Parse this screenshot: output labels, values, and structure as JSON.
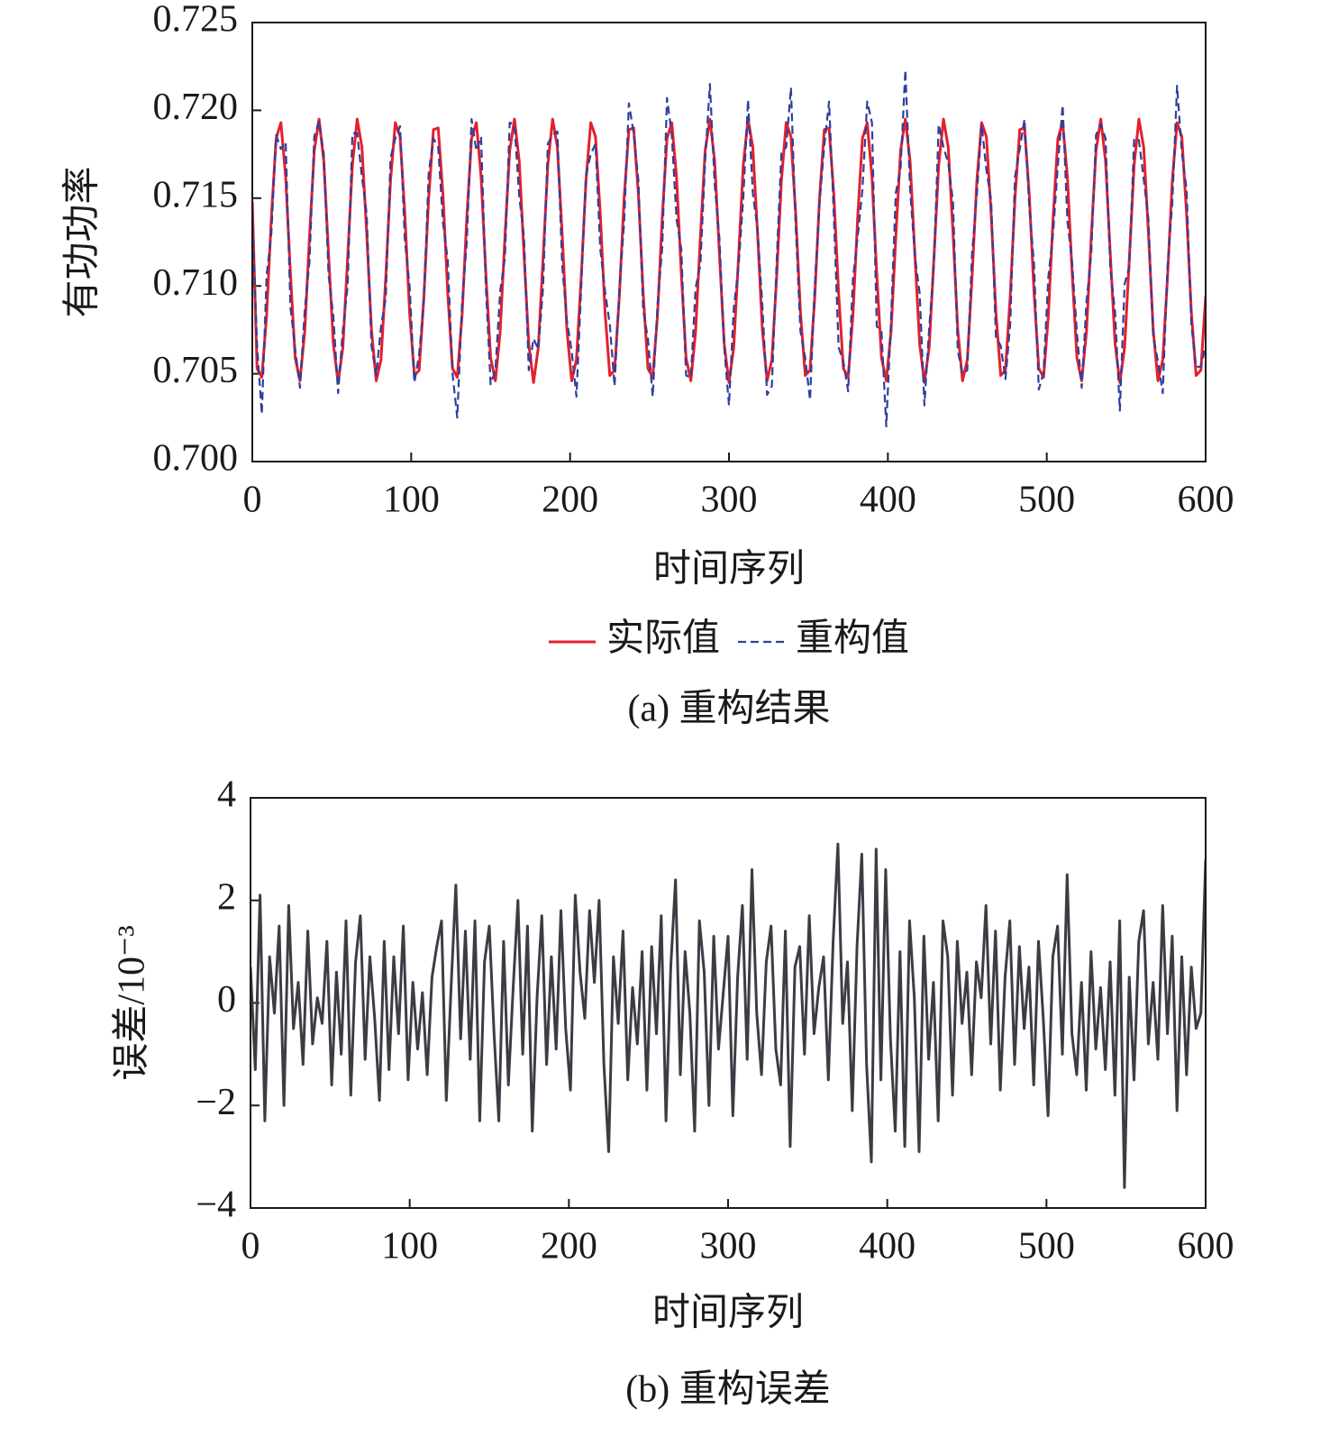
{
  "chart_data": [
    {
      "type": "line",
      "caption": "(a) 重构结果",
      "xlabel": "时间序列",
      "ylabel": "有功功率",
      "legend": "below",
      "xlim": [
        0,
        600
      ],
      "xticks": [
        0,
        100,
        200,
        300,
        400,
        500,
        600
      ],
      "ylim": [
        0.7,
        0.725
      ],
      "yticks": [
        {
          "value": 0.7,
          "label": "0.700"
        },
        0.705,
        {
          "value": 0.71,
          "label": "0.710"
        },
        0.715,
        {
          "value": 0.72,
          "label": "0.720"
        },
        0.725
      ],
      "x": [
        0,
        3,
        6,
        9,
        12,
        15,
        18,
        21,
        24,
        27,
        30,
        33,
        36,
        39,
        42,
        45,
        48,
        51,
        54,
        57,
        60,
        63,
        66,
        69,
        72,
        75,
        78,
        81,
        84,
        87,
        90,
        93,
        96,
        99,
        102,
        105,
        108,
        111,
        114,
        117,
        120,
        123,
        126,
        129,
        132,
        135,
        138,
        141,
        144,
        147,
        150,
        153,
        156,
        159,
        162,
        165,
        168,
        171,
        174,
        177,
        180,
        183,
        186,
        189,
        192,
        195,
        198,
        201,
        204,
        207,
        210,
        213,
        216,
        219,
        222,
        225,
        228,
        231,
        234,
        237,
        240,
        243,
        246,
        249,
        252,
        255,
        258,
        261,
        264,
        267,
        270,
        273,
        276,
        279,
        282,
        285,
        288,
        291,
        294,
        297,
        300,
        303,
        306,
        309,
        312,
        315,
        318,
        321,
        324,
        327,
        330,
        333,
        336,
        339,
        342,
        345,
        348,
        351,
        354,
        357,
        360,
        363,
        366,
        369,
        372,
        375,
        378,
        381,
        384,
        387,
        390,
        393,
        396,
        399,
        402,
        405,
        408,
        411,
        414,
        417,
        420,
        423,
        426,
        429,
        432,
        435,
        438,
        441,
        444,
        447,
        450,
        453,
        456,
        459,
        462,
        465,
        468,
        471,
        474,
        477,
        480,
        483,
        486,
        489,
        492,
        495,
        498,
        501,
        504,
        507,
        510,
        513,
        516,
        519,
        522,
        525,
        528,
        531,
        534,
        537,
        540,
        543,
        546,
        549,
        552,
        555,
        558,
        561,
        564,
        567,
        570,
        573,
        576,
        579,
        582,
        585,
        588,
        591,
        594,
        597,
        600
      ],
      "series": [
        {
          "name": "实际值",
          "color": "#e3202c",
          "dashed": false,
          "values": [
            0.7148,
            0.7053,
            0.7048,
            0.7083,
            0.7139,
            0.7184,
            0.7193,
            0.7162,
            0.7107,
            0.7059,
            0.7046,
            0.7074,
            0.7128,
            0.7177,
            0.7195,
            0.7171,
            0.7118,
            0.7067,
            0.7045,
            0.7065,
            0.7116,
            0.7169,
            0.7195,
            0.7179,
            0.713,
            0.7075,
            0.7046,
            0.7058,
            0.7105,
            0.716,
            0.7193,
            0.7185,
            0.7141,
            0.7085,
            0.7049,
            0.7052,
            0.7094,
            0.715,
            0.7189,
            0.719,
            0.7152,
            0.7096,
            0.7053,
            0.7048,
            0.7083,
            0.7139,
            0.7184,
            0.7193,
            0.7162,
            0.7107,
            0.7059,
            0.7046,
            0.7074,
            0.7128,
            0.7177,
            0.7195,
            0.7171,
            0.7118,
            0.7067,
            0.7045,
            0.7065,
            0.7116,
            0.7169,
            0.7195,
            0.7179,
            0.713,
            0.7075,
            0.7046,
            0.7058,
            0.7105,
            0.716,
            0.7193,
            0.7185,
            0.7141,
            0.7085,
            0.7049,
            0.7052,
            0.7094,
            0.715,
            0.7189,
            0.719,
            0.7152,
            0.7096,
            0.7053,
            0.7048,
            0.7083,
            0.7139,
            0.7184,
            0.7193,
            0.7162,
            0.7107,
            0.7059,
            0.7046,
            0.7074,
            0.7128,
            0.7177,
            0.7195,
            0.7171,
            0.7118,
            0.7067,
            0.7045,
            0.7065,
            0.7116,
            0.7169,
            0.7195,
            0.7179,
            0.713,
            0.7075,
            0.7046,
            0.7058,
            0.7105,
            0.716,
            0.7193,
            0.7185,
            0.7141,
            0.7085,
            0.7049,
            0.7052,
            0.7094,
            0.715,
            0.7189,
            0.719,
            0.7152,
            0.7096,
            0.7053,
            0.7048,
            0.7083,
            0.7139,
            0.7184,
            0.7193,
            0.7162,
            0.7107,
            0.7059,
            0.7046,
            0.7074,
            0.7128,
            0.7177,
            0.7195,
            0.7171,
            0.7118,
            0.7067,
            0.7045,
            0.7065,
            0.7116,
            0.7169,
            0.7195,
            0.7179,
            0.713,
            0.7075,
            0.7046,
            0.7058,
            0.7105,
            0.716,
            0.7193,
            0.7185,
            0.7141,
            0.7085,
            0.7049,
            0.7052,
            0.7094,
            0.715,
            0.7189,
            0.719,
            0.7152,
            0.7096,
            0.7053,
            0.7048,
            0.7083,
            0.7139,
            0.7184,
            0.7193,
            0.7162,
            0.7107,
            0.7059,
            0.7046,
            0.7074,
            0.7128,
            0.7177,
            0.7195,
            0.7171,
            0.7118,
            0.7067,
            0.7045,
            0.7065,
            0.7116,
            0.7169,
            0.7195,
            0.7179,
            0.713,
            0.7075,
            0.7046,
            0.7058,
            0.7105,
            0.716,
            0.7193,
            0.7185,
            0.7141,
            0.7085,
            0.7049,
            0.7052,
            0.7094
          ]
        },
        {
          "name": "重构值",
          "color": "#2e3f9e",
          "dashed": true,
          "values": [
            0.7141,
            0.7066,
            0.7027,
            0.7106,
            0.713,
            0.7186,
            0.7178,
            0.7182,
            0.7088,
            0.7064,
            0.7042,
            0.7086,
            0.7114,
            0.7185,
            0.7194,
            0.7175,
            0.7106,
            0.7083,
            0.7039,
            0.7075,
            0.71,
            0.7187,
            0.7187,
            0.7162,
            0.7141,
            0.7066,
            0.7049,
            0.7077,
            0.7093,
            0.7173,
            0.7184,
            0.7191,
            0.7126,
            0.71,
            0.7045,
            0.7061,
            0.7092,
            0.7164,
            0.7184,
            0.7179,
            0.7136,
            0.7115,
            0.705,
            0.7025,
            0.709,
            0.7125,
            0.7195,
            0.7177,
            0.7185,
            0.7099,
            0.7044,
            0.7052,
            0.7097,
            0.7116,
            0.7193,
            0.7192,
            0.7151,
            0.7128,
            0.7052,
            0.707,
            0.7064,
            0.7099,
            0.7181,
            0.7186,
            0.7188,
            0.7112,
            0.708,
            0.7063,
            0.7037,
            0.7099,
            0.7163,
            0.7175,
            0.7181,
            0.7121,
            0.7097,
            0.7078,
            0.7043,
            0.7098,
            0.7136,
            0.7204,
            0.7187,
            0.716,
            0.7086,
            0.707,
            0.7037,
            0.7089,
            0.7122,
            0.7207,
            0.7186,
            0.7138,
            0.7121,
            0.7049,
            0.7048,
            0.7099,
            0.7112,
            0.7171,
            0.7215,
            0.7158,
            0.7127,
            0.7065,
            0.7032,
            0.7087,
            0.7111,
            0.715,
            0.7206,
            0.7153,
            0.7132,
            0.7089,
            0.7038,
            0.7043,
            0.7114,
            0.7176,
            0.7179,
            0.7213,
            0.7134,
            0.7074,
            0.7059,
            0.7035,
            0.71,
            0.7147,
            0.718,
            0.7205,
            0.714,
            0.7065,
            0.7057,
            0.704,
            0.7104,
            0.7128,
            0.7155,
            0.7205,
            0.7193,
            0.7077,
            0.7074,
            0.702,
            0.7081,
            0.7153,
            0.7167,
            0.7223,
            0.7155,
            0.7117,
            0.7096,
            0.7032,
            0.7076,
            0.7112,
            0.7192,
            0.7179,
            0.717,
            0.7148,
            0.7063,
            0.705,
            0.7052,
            0.7119,
            0.7152,
            0.7192,
            0.7166,
            0.7149,
            0.7071,
            0.7066,
            0.7047,
            0.7078,
            0.7162,
            0.7178,
            0.7195,
            0.7145,
            0.7112,
            0.7041,
            0.7051,
            0.7105,
            0.713,
            0.7169,
            0.7203,
            0.7137,
            0.7113,
            0.7073,
            0.7042,
            0.7091,
            0.7118,
            0.7186,
            0.7192,
            0.7184,
            0.711,
            0.7085,
            0.7029,
            0.7101,
            0.7111,
            0.7184,
            0.7183,
            0.7161,
            0.7138,
            0.7071,
            0.7057,
            0.7039,
            0.7111,
            0.7147,
            0.7214,
            0.7176,
            0.7155,
            0.7078,
            0.7054,
            0.7054,
            0.7066
          ]
        }
      ]
    },
    {
      "type": "line",
      "caption": "(b) 重构误差",
      "xlabel": "时间序列",
      "ylabel": "误差/10⁻³",
      "xlim": [
        0,
        600
      ],
      "xticks": [
        0,
        100,
        200,
        300,
        400,
        500,
        600
      ],
      "ylim": [
        -4,
        4
      ],
      "yticks": [
        {
          "value": -4,
          "label": "−4"
        },
        {
          "value": -2,
          "label": "−2"
        },
        0,
        2,
        4
      ],
      "x": [
        0,
        3,
        6,
        9,
        12,
        15,
        18,
        21,
        24,
        27,
        30,
        33,
        36,
        39,
        42,
        45,
        48,
        51,
        54,
        57,
        60,
        63,
        66,
        69,
        72,
        75,
        78,
        81,
        84,
        87,
        90,
        93,
        96,
        99,
        102,
        105,
        108,
        111,
        114,
        117,
        120,
        123,
        126,
        129,
        132,
        135,
        138,
        141,
        144,
        147,
        150,
        153,
        156,
        159,
        162,
        165,
        168,
        171,
        174,
        177,
        180,
        183,
        186,
        189,
        192,
        195,
        198,
        201,
        204,
        207,
        210,
        213,
        216,
        219,
        222,
        225,
        228,
        231,
        234,
        237,
        240,
        243,
        246,
        249,
        252,
        255,
        258,
        261,
        264,
        267,
        270,
        273,
        276,
        279,
        282,
        285,
        288,
        291,
        294,
        297,
        300,
        303,
        306,
        309,
        312,
        315,
        318,
        321,
        324,
        327,
        330,
        333,
        336,
        339,
        342,
        345,
        348,
        351,
        354,
        357,
        360,
        363,
        366,
        369,
        372,
        375,
        378,
        381,
        384,
        387,
        390,
        393,
        396,
        399,
        402,
        405,
        408,
        411,
        414,
        417,
        420,
        423,
        426,
        429,
        432,
        435,
        438,
        441,
        444,
        447,
        450,
        453,
        456,
        459,
        462,
        465,
        468,
        471,
        474,
        477,
        480,
        483,
        486,
        489,
        492,
        495,
        498,
        501,
        504,
        507,
        510,
        513,
        516,
        519,
        522,
        525,
        528,
        531,
        534,
        537,
        540,
        543,
        546,
        549,
        552,
        555,
        558,
        561,
        564,
        567,
        570,
        573,
        576,
        579,
        582,
        585,
        588,
        591,
        594,
        597,
        600
      ],
      "series": [
        {
          "color": "#3c3d44",
          "dashed": false,
          "values": [
            0.7,
            -1.3,
            2.1,
            -2.3,
            0.9,
            -0.2,
            1.5,
            -2.0,
            1.9,
            -0.5,
            0.4,
            -1.2,
            1.4,
            -0.8,
            0.1,
            -0.4,
            1.2,
            -1.6,
            0.6,
            -1.0,
            1.6,
            -1.8,
            0.8,
            1.7,
            -1.1,
            0.9,
            -0.3,
            -1.9,
            1.2,
            -1.3,
            0.9,
            -0.6,
            1.5,
            -1.5,
            0.4,
            -0.9,
            0.2,
            -1.4,
            0.5,
            1.1,
            1.6,
            -1.9,
            0.3,
            2.3,
            -0.7,
            1.4,
            -1.1,
            1.6,
            -2.3,
            0.8,
            1.5,
            -0.6,
            -2.3,
            1.2,
            -1.6,
            0.3,
            2.0,
            -1.0,
            1.5,
            -2.5,
            0.1,
            1.7,
            -1.2,
            0.9,
            -0.9,
            1.8,
            -0.5,
            -1.7,
            2.1,
            0.6,
            -0.3,
            1.8,
            0.4,
            2.0,
            -1.2,
            -2.9,
            0.9,
            -0.4,
            1.4,
            -1.5,
            0.3,
            -0.8,
            1.0,
            -1.7,
            1.1,
            -0.6,
            1.7,
            -2.3,
            0.7,
            2.4,
            -1.4,
            1.0,
            -0.2,
            -2.5,
            1.6,
            0.6,
            -2.0,
            1.3,
            -0.9,
            0.2,
            1.3,
            -2.2,
            0.5,
            1.9,
            -1.1,
            2.6,
            -0.2,
            -1.4,
            0.8,
            1.5,
            -0.9,
            -1.6,
            1.4,
            -2.8,
            0.7,
            1.1,
            -1.0,
            1.7,
            -0.6,
            0.3,
            0.9,
            -1.5,
            1.2,
            3.1,
            -0.4,
            0.8,
            -2.1,
            1.1,
            2.9,
            -1.2,
            -3.1,
            3.0,
            -1.5,
            2.6,
            -0.7,
            -2.5,
            1.0,
            -2.8,
            1.6,
            0.1,
            -2.9,
            1.3,
            -1.1,
            0.4,
            -2.3,
            1.6,
            0.9,
            -1.8,
            1.2,
            -0.4,
            0.6,
            -1.4,
            0.8,
            0.1,
            1.9,
            -0.8,
            1.4,
            -1.7,
            0.5,
            1.6,
            -1.2,
            1.1,
            -0.5,
            0.7,
            -1.6,
            1.2,
            -0.3,
            -2.2,
            0.9,
            1.5,
            -1.0,
            2.5,
            -0.6,
            -1.4,
            0.4,
            -1.7,
            1.0,
            -0.9,
            0.3,
            -1.3,
            0.8,
            -1.8,
            1.6,
            -3.6,
            0.5,
            -1.5,
            1.2,
            1.8,
            -0.8,
            0.4,
            -1.1,
            1.9,
            -0.6,
            1.3,
            -2.1,
            0.9,
            -1.4,
            0.7,
            -0.5,
            -0.2,
            2.8
          ]
        }
      ]
    }
  ]
}
